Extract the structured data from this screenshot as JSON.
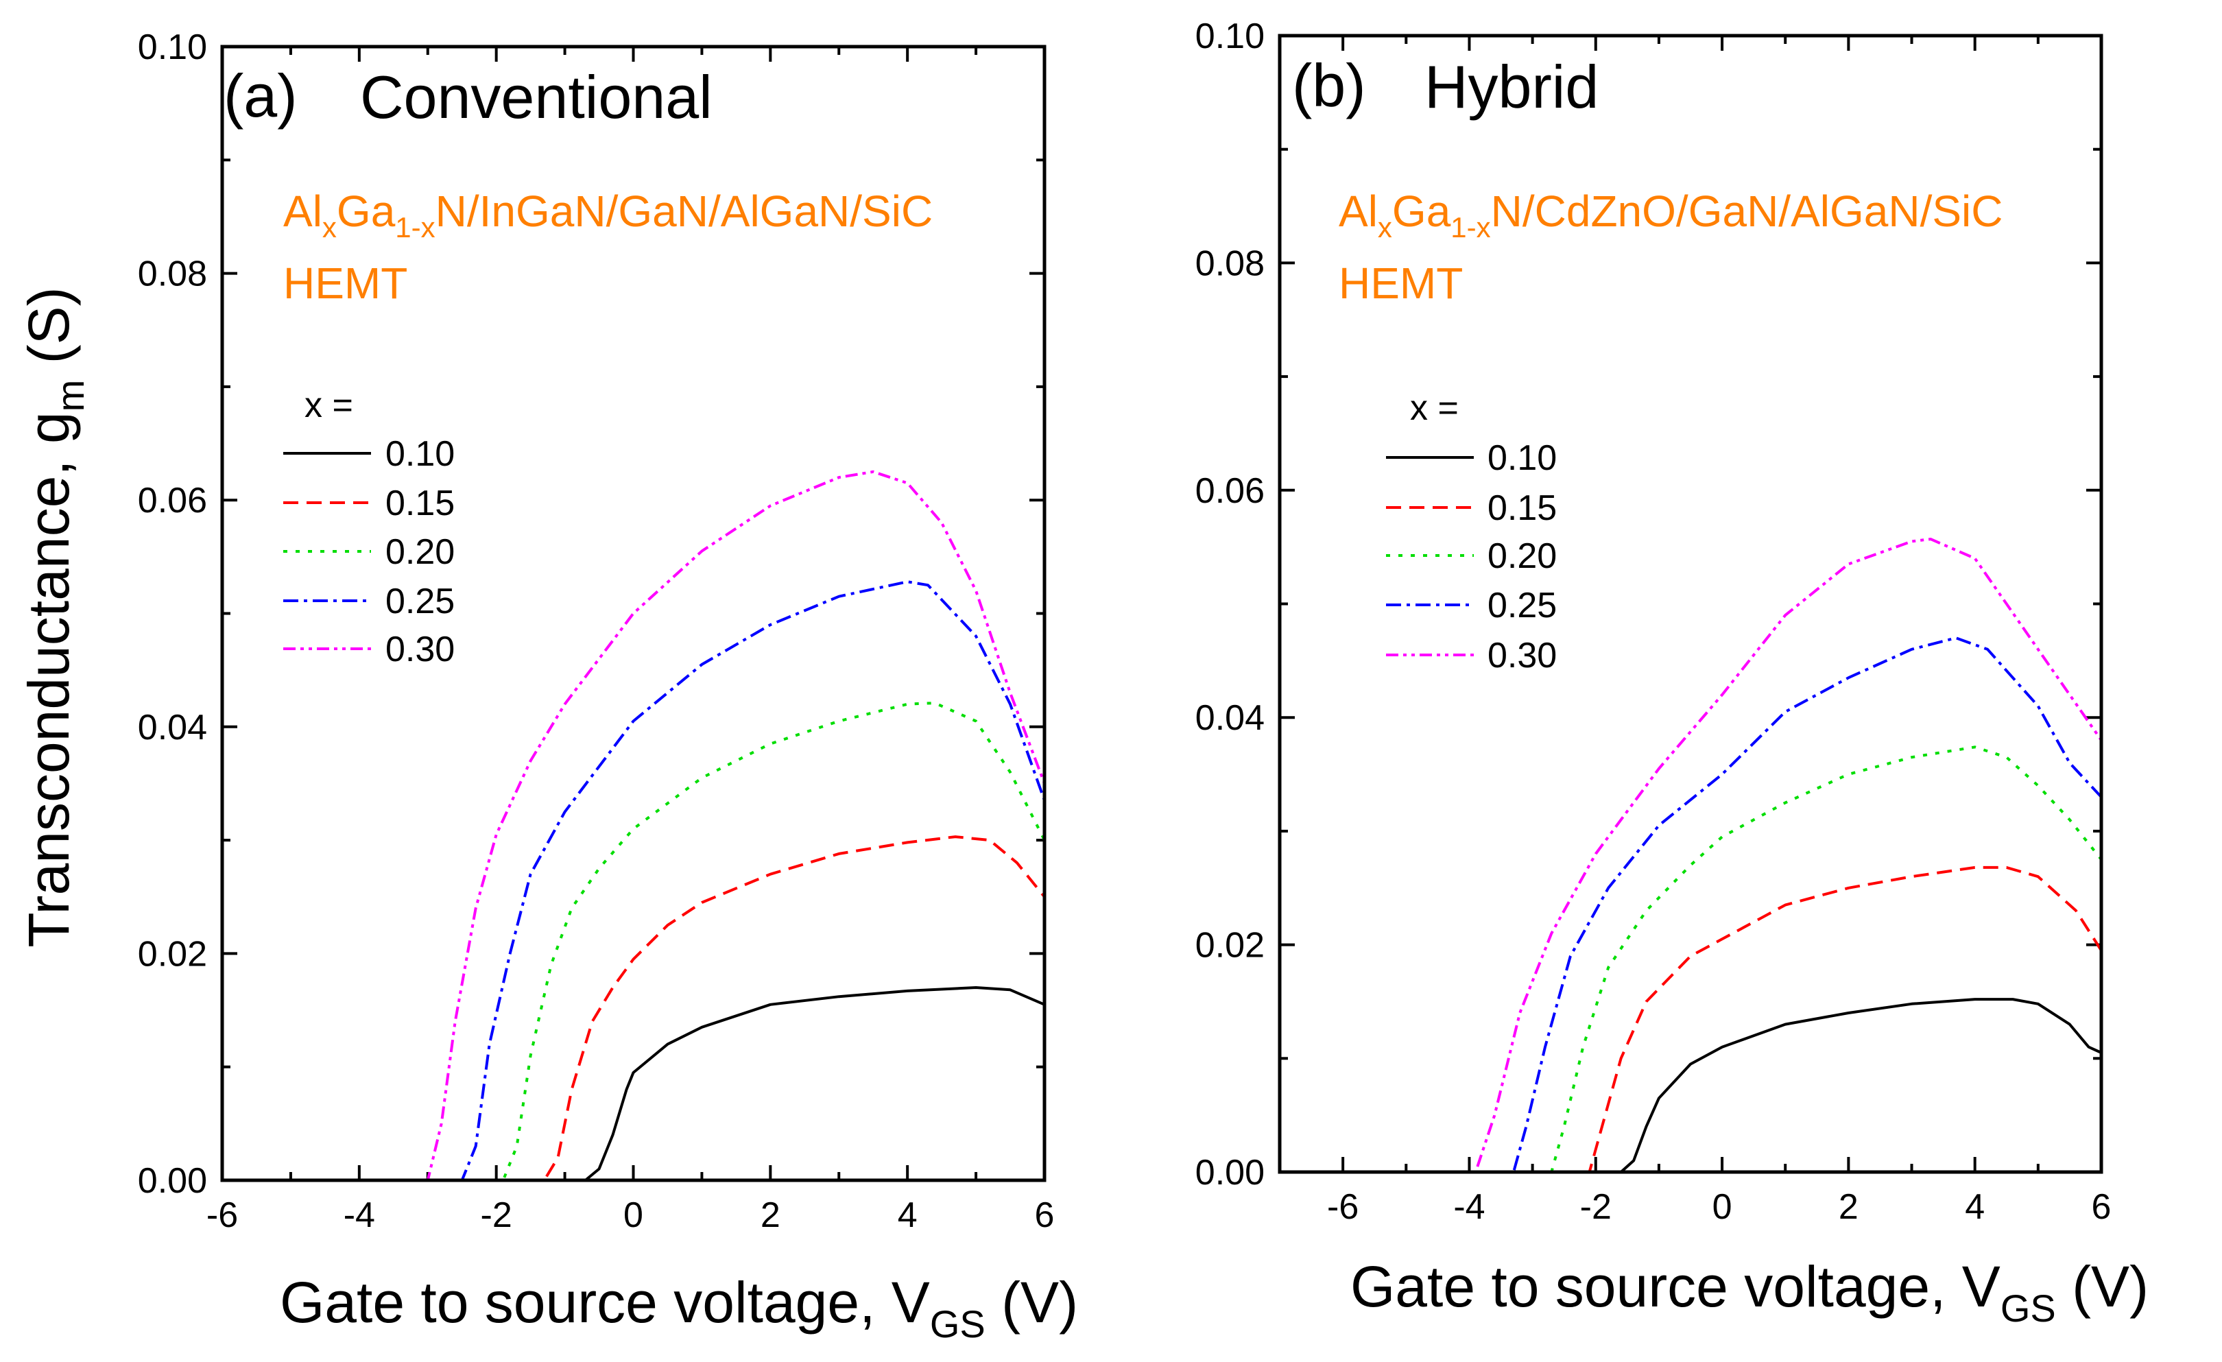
{
  "chart_data": [
    {
      "type": "line",
      "panel_label": "(a)",
      "title": "Conventional",
      "material_prefix": "Al",
      "material_sub1": "x",
      "material_mid": "Ga",
      "material_sub2": "1-x",
      "material_suffix": "N/InGaN/GaN/AlGaN/SiC",
      "device": "HEMT",
      "xlabel": "Gate to source voltage, V",
      "xlabel_sub": "GS",
      "xlabel_unit": " (V)",
      "ylabel": "Transconductance, g",
      "ylabel_sub": "m",
      "ylabel_unit": " (S)",
      "xlim": [
        -6,
        6
      ],
      "ylim": [
        0,
        0.1
      ],
      "xticks": [
        "-6",
        "-4",
        "-2",
        "0",
        "2",
        "4",
        "6"
      ],
      "yticks": [
        "0.00",
        "0.02",
        "0.04",
        "0.06",
        "0.08",
        "0.10"
      ],
      "legend_title": "x =",
      "legend_placement": "center-left",
      "series": [
        {
          "name": "0.10",
          "color": "#000000",
          "style": "solid",
          "points": [
            [
              -6,
              0
            ],
            [
              -0.7,
              0
            ],
            [
              -0.5,
              0.001
            ],
            [
              -0.3,
              0.004
            ],
            [
              -0.1,
              0.008
            ],
            [
              0,
              0.0095
            ],
            [
              0.5,
              0.012
            ],
            [
              1,
              0.0135
            ],
            [
              2,
              0.0155
            ],
            [
              3,
              0.0162
            ],
            [
              4,
              0.0167
            ],
            [
              5,
              0.017
            ],
            [
              5.5,
              0.0168
            ],
            [
              6,
              0.0155
            ]
          ]
        },
        {
          "name": "0.15",
          "color": "#FF0000",
          "style": "dash",
          "points": [
            [
              -6,
              0
            ],
            [
              -1.3,
              0
            ],
            [
              -1.1,
              0.002
            ],
            [
              -0.9,
              0.008
            ],
            [
              -0.6,
              0.014
            ],
            [
              -0.3,
              0.017
            ],
            [
              0,
              0.0195
            ],
            [
              0.5,
              0.0225
            ],
            [
              1,
              0.0245
            ],
            [
              2,
              0.027
            ],
            [
              3,
              0.0288
            ],
            [
              4,
              0.0298
            ],
            [
              4.7,
              0.0303
            ],
            [
              5.2,
              0.03
            ],
            [
              5.6,
              0.028
            ],
            [
              6,
              0.025
            ]
          ]
        },
        {
          "name": "0.20",
          "color": "#00DD00",
          "style": "dot",
          "points": [
            [
              -6,
              0
            ],
            [
              -1.9,
              0
            ],
            [
              -1.7,
              0.003
            ],
            [
              -1.5,
              0.011
            ],
            [
              -1.2,
              0.019
            ],
            [
              -0.9,
              0.024
            ],
            [
              -0.5,
              0.0275
            ],
            [
              0,
              0.031
            ],
            [
              1,
              0.0355
            ],
            [
              2,
              0.0385
            ],
            [
              3,
              0.0405
            ],
            [
              4,
              0.042
            ],
            [
              4.4,
              0.0421
            ],
            [
              5,
              0.0405
            ],
            [
              5.5,
              0.036
            ],
            [
              6,
              0.03
            ]
          ]
        },
        {
          "name": "0.25",
          "color": "#0000FF",
          "style": "dashdot",
          "points": [
            [
              -6,
              0
            ],
            [
              -2.5,
              0
            ],
            [
              -2.3,
              0.003
            ],
            [
              -2.1,
              0.012
            ],
            [
              -1.8,
              0.02
            ],
            [
              -1.5,
              0.027
            ],
            [
              -1,
              0.0325
            ],
            [
              0,
              0.0405
            ],
            [
              1,
              0.0455
            ],
            [
              2,
              0.049
            ],
            [
              3,
              0.0515
            ],
            [
              4,
              0.0528
            ],
            [
              4.3,
              0.0525
            ],
            [
              5,
              0.048
            ],
            [
              5.5,
              0.042
            ],
            [
              6,
              0.0335
            ]
          ]
        },
        {
          "name": "0.30",
          "color": "#FF00FF",
          "style": "dashdotdot",
          "points": [
            [
              -6,
              0
            ],
            [
              -3.0,
              0
            ],
            [
              -2.8,
              0.005
            ],
            [
              -2.6,
              0.014
            ],
            [
              -2.3,
              0.024
            ],
            [
              -2,
              0.0305
            ],
            [
              -1.5,
              0.037
            ],
            [
              -1,
              0.042
            ],
            [
              0,
              0.05
            ],
            [
              1,
              0.0555
            ],
            [
              2,
              0.0595
            ],
            [
              3,
              0.062
            ],
            [
              3.5,
              0.0625
            ],
            [
              4,
              0.0615
            ],
            [
              4.5,
              0.058
            ],
            [
              5,
              0.052
            ],
            [
              5.5,
              0.043
            ],
            [
              6,
              0.035
            ]
          ]
        }
      ]
    },
    {
      "type": "line",
      "panel_label": "(b)",
      "title": "Hybrid",
      "material_prefix": "Al",
      "material_sub1": "x",
      "material_mid": "Ga",
      "material_sub2": "1-x",
      "material_suffix": "N/CdZnO/GaN/AlGaN/SiC",
      "device": "HEMT",
      "xlabel": "Gate to source voltage, V",
      "xlabel_sub": "GS",
      "xlabel_unit": " (V)",
      "xlim": [
        -7,
        6
      ],
      "ylim": [
        0,
        0.1
      ],
      "xticks": [
        "-6",
        "-4",
        "-2",
        "0",
        "2",
        "4",
        "6"
      ],
      "yticks": [
        "0.00",
        "0.02",
        "0.04",
        "0.06",
        "0.08",
        "0.10"
      ],
      "legend_title": "x =",
      "legend_placement": "center-left",
      "series": [
        {
          "name": "0.10",
          "color": "#000000",
          "style": "solid",
          "points": [
            [
              -7,
              0
            ],
            [
              -1.6,
              0
            ],
            [
              -1.4,
              0.001
            ],
            [
              -1.2,
              0.004
            ],
            [
              -1,
              0.0065
            ],
            [
              -0.5,
              0.0095
            ],
            [
              0,
              0.011
            ],
            [
              1,
              0.013
            ],
            [
              2,
              0.014
            ],
            [
              3,
              0.0148
            ],
            [
              4,
              0.0152
            ],
            [
              4.6,
              0.0152
            ],
            [
              5,
              0.0148
            ],
            [
              5.5,
              0.013
            ],
            [
              5.8,
              0.011
            ],
            [
              6,
              0.0105
            ]
          ]
        },
        {
          "name": "0.15",
          "color": "#FF0000",
          "style": "dash",
          "points": [
            [
              -7,
              0
            ],
            [
              -2.1,
              0
            ],
            [
              -1.9,
              0.004
            ],
            [
              -1.6,
              0.01
            ],
            [
              -1.2,
              0.015
            ],
            [
              -0.5,
              0.019
            ],
            [
              0,
              0.0205
            ],
            [
              1,
              0.0235
            ],
            [
              2,
              0.025
            ],
            [
              3,
              0.026
            ],
            [
              4,
              0.0268
            ],
            [
              4.5,
              0.0268
            ],
            [
              5,
              0.026
            ],
            [
              5.6,
              0.023
            ],
            [
              6,
              0.0195
            ]
          ]
        },
        {
          "name": "0.20",
          "color": "#00DD00",
          "style": "dot",
          "points": [
            [
              -7,
              0
            ],
            [
              -2.7,
              0
            ],
            [
              -2.5,
              0.004
            ],
            [
              -2.2,
              0.011
            ],
            [
              -1.8,
              0.018
            ],
            [
              -1.2,
              0.023
            ],
            [
              -0.5,
              0.027
            ],
            [
              0,
              0.0295
            ],
            [
              1,
              0.0325
            ],
            [
              2,
              0.035
            ],
            [
              3,
              0.0365
            ],
            [
              4,
              0.0374
            ],
            [
              4.5,
              0.0365
            ],
            [
              5,
              0.034
            ],
            [
              5.5,
              0.031
            ],
            [
              6,
              0.0275
            ]
          ]
        },
        {
          "name": "0.25",
          "color": "#0000FF",
          "style": "dashdot",
          "points": [
            [
              -7,
              0
            ],
            [
              -3.3,
              0
            ],
            [
              -3.1,
              0.004
            ],
            [
              -2.8,
              0.011
            ],
            [
              -2.4,
              0.019
            ],
            [
              -1.8,
              0.025
            ],
            [
              -1,
              0.0305
            ],
            [
              0,
              0.035
            ],
            [
              1,
              0.0405
            ],
            [
              2,
              0.0435
            ],
            [
              3,
              0.046
            ],
            [
              3.7,
              0.047
            ],
            [
              4.2,
              0.046
            ],
            [
              5,
              0.041
            ],
            [
              5.5,
              0.036
            ],
            [
              6,
              0.033
            ]
          ]
        },
        {
          "name": "0.30",
          "color": "#FF00FF",
          "style": "dashdotdot",
          "points": [
            [
              -7,
              0
            ],
            [
              -3.9,
              0
            ],
            [
              -3.6,
              0.005
            ],
            [
              -3.2,
              0.014
            ],
            [
              -2.7,
              0.021
            ],
            [
              -2,
              0.028
            ],
            [
              -1,
              0.0355
            ],
            [
              0,
              0.042
            ],
            [
              1,
              0.049
            ],
            [
              2,
              0.0535
            ],
            [
              3,
              0.0555
            ],
            [
              3.3,
              0.0557
            ],
            [
              4,
              0.054
            ],
            [
              4.5,
              0.05
            ],
            [
              5,
              0.046
            ],
            [
              5.5,
              0.042
            ],
            [
              6,
              0.038
            ]
          ]
        }
      ]
    }
  ]
}
